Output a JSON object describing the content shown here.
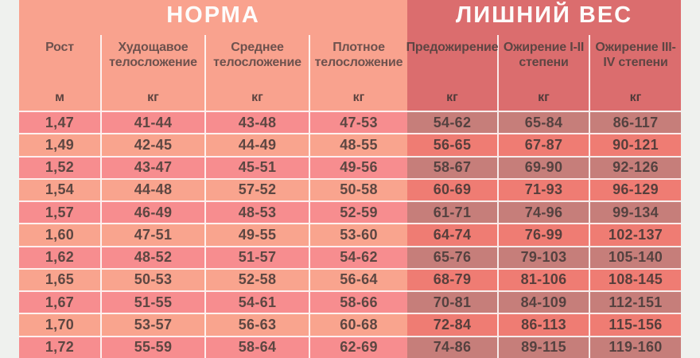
{
  "sections": [
    {
      "title": "НОРМА"
    },
    {
      "title": "ЛИШНИЙ ВЕС"
    }
  ],
  "chart_data": {
    "type": "table",
    "title_left": "НОРМА",
    "title_right": "ЛИШНИЙ ВЕС",
    "columns": [
      {
        "label": "Рост",
        "unit": "м",
        "section": "norm"
      },
      {
        "label": "Худощавое телосложение",
        "unit": "кг",
        "section": "norm"
      },
      {
        "label": "Среднее телосложение",
        "unit": "кг",
        "section": "norm"
      },
      {
        "label": "Плотное телосложение",
        "unit": "кг",
        "section": "norm"
      },
      {
        "label": "Предожирение",
        "unit": "кг",
        "section": "over"
      },
      {
        "label": "Ожирение I-II степени",
        "unit": "кг",
        "section": "over"
      },
      {
        "label": "Ожирение III-IV степени",
        "unit": "кг",
        "section": "over"
      }
    ],
    "rows": [
      [
        "1,47",
        "41-44",
        "43-48",
        "47-53",
        "54-62",
        "65-84",
        "86-117"
      ],
      [
        "1,49",
        "42-45",
        "44-49",
        "48-55",
        "56-65",
        "67-87",
        "90-121"
      ],
      [
        "1,52",
        "43-47",
        "45-51",
        "49-56",
        "58-67",
        "69-90",
        "92-126"
      ],
      [
        "1,54",
        "44-48",
        "57-52",
        "50-58",
        "60-69",
        "71-93",
        "96-129"
      ],
      [
        "1,57",
        "46-49",
        "48-53",
        "52-59",
        "61-71",
        "74-96",
        "99-134"
      ],
      [
        "1,60",
        "47-51",
        "49-55",
        "53-60",
        "64-74",
        "76-99",
        "102-137"
      ],
      [
        "1,62",
        "48-52",
        "51-57",
        "54-62",
        "65-76",
        "79-103",
        "105-140"
      ],
      [
        "1,65",
        "50-53",
        "52-58",
        "56-64",
        "68-79",
        "81-106",
        "108-145"
      ],
      [
        "1,67",
        "51-55",
        "54-61",
        "58-66",
        "70-81",
        "84-109",
        "112-151"
      ],
      [
        "1,70",
        "53-57",
        "56-63",
        "60-68",
        "72-84",
        "86-113",
        "115-156"
      ],
      [
        "1,72",
        "55-59",
        "58-64",
        "62-69",
        "74-86",
        "89-115",
        "119-160"
      ]
    ]
  },
  "colors": {
    "norm_header": "#f9a28e",
    "over_header": "#db6d6e",
    "norm_row_dark": "#f78d8f",
    "norm_row_light": "#f9a48e",
    "over_row_dark": "#c67e7a",
    "over_row_light": "#ef7c73",
    "margin": "#eff1ee",
    "grid_line": "#ffffff",
    "title_text": "#fdfcfb",
    "header_text": "#6e524e",
    "cell_text": "#5d4742"
  }
}
